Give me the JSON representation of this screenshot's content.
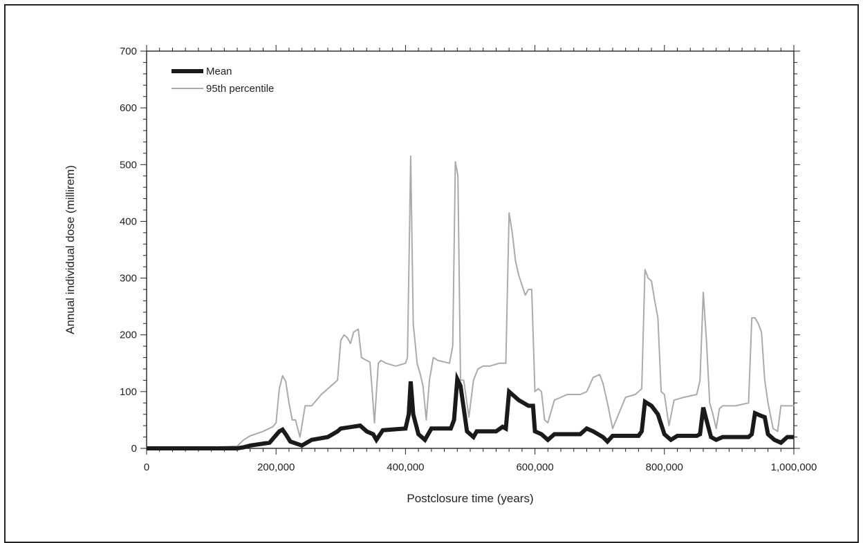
{
  "chart_data": {
    "type": "line",
    "xlabel": "Postclosure time (years)",
    "ylabel": "Annual individual dose (millirem)",
    "xlim": [
      0,
      1000000
    ],
    "ylim": [
      0,
      700
    ],
    "x_ticks": [
      0,
      200000,
      400000,
      600000,
      800000,
      1000000
    ],
    "x_tick_labels": [
      "0",
      "200,000",
      "400,000",
      "600,000",
      "800,000",
      "1,000,000"
    ],
    "y_ticks": [
      0,
      100,
      200,
      300,
      400,
      500,
      600,
      700
    ],
    "y_tick_labels": [
      "0",
      "100",
      "200",
      "300",
      "400",
      "500",
      "600",
      "700"
    ],
    "grid": false,
    "legend_position": "top-left",
    "series": [
      {
        "name": "Mean",
        "color": "#1a1a1a",
        "x": [
          0,
          100000,
          140000,
          150000,
          160000,
          190000,
          205000,
          210000,
          215000,
          222000,
          240000,
          255000,
          280000,
          295000,
          300000,
          330000,
          340000,
          350000,
          355000,
          365000,
          400000,
          405000,
          408000,
          412000,
          420000,
          430000,
          440000,
          470000,
          475000,
          480000,
          485000,
          495000,
          505000,
          510000,
          540000,
          550000,
          555000,
          560000,
          575000,
          590000,
          597000,
          600000,
          610000,
          620000,
          630000,
          660000,
          670000,
          680000,
          690000,
          705000,
          712000,
          720000,
          760000,
          765000,
          770000,
          780000,
          790000,
          800000,
          810000,
          820000,
          850000,
          855000,
          860000,
          865000,
          872000,
          880000,
          890000,
          930000,
          935000,
          940000,
          948000,
          955000,
          960000,
          970000,
          980000,
          990000,
          1000000
        ],
        "y": [
          0,
          0,
          0,
          2,
          5,
          10,
          30,
          33,
          25,
          12,
          5,
          15,
          20,
          30,
          35,
          40,
          30,
          25,
          15,
          32,
          35,
          60,
          118,
          60,
          25,
          15,
          35,
          35,
          50,
          122,
          110,
          30,
          20,
          30,
          30,
          38,
          35,
          100,
          85,
          75,
          75,
          30,
          25,
          15,
          25,
          25,
          25,
          35,
          30,
          20,
          12,
          22,
          22,
          30,
          82,
          75,
          60,
          25,
          15,
          22,
          22,
          25,
          72,
          50,
          20,
          15,
          20,
          20,
          25,
          62,
          58,
          55,
          25,
          15,
          10,
          20,
          20
        ]
      },
      {
        "name": "95th percentile",
        "color": "#aaaaaa",
        "x": [
          0,
          100000,
          140000,
          150000,
          160000,
          180000,
          195000,
          200000,
          205000,
          210000,
          215000,
          220000,
          225000,
          230000,
          237000,
          245000,
          255000,
          270000,
          290000,
          295000,
          300000,
          305000,
          310000,
          315000,
          320000,
          327000,
          332000,
          340000,
          345000,
          348000,
          352000,
          358000,
          362000,
          370000,
          385000,
          400000,
          403000,
          405000,
          408000,
          412000,
          418000,
          423000,
          427000,
          432000,
          437000,
          443000,
          450000,
          468000,
          473000,
          477000,
          481000,
          485000,
          490000,
          498000,
          505000,
          512000,
          520000,
          530000,
          545000,
          555000,
          560000,
          565000,
          570000,
          575000,
          585000,
          590000,
          595000,
          600000,
          605000,
          610000,
          615000,
          620000,
          630000,
          650000,
          660000,
          670000,
          680000,
          690000,
          700000,
          705000,
          712000,
          720000,
          740000,
          755000,
          760000,
          765000,
          770000,
          775000,
          780000,
          785000,
          790000,
          795000,
          800000,
          807000,
          815000,
          830000,
          850000,
          855000,
          860000,
          865000,
          870000,
          875000,
          880000,
          885000,
          890000,
          910000,
          930000,
          935000,
          940000,
          945000,
          950000,
          955000,
          960000,
          968000,
          975000,
          980000,
          990000,
          1000000
        ],
        "y": [
          2,
          2,
          4,
          15,
          22,
          30,
          38,
          45,
          105,
          128,
          118,
          80,
          50,
          50,
          20,
          75,
          75,
          95,
          115,
          120,
          190,
          200,
          195,
          185,
          205,
          210,
          160,
          155,
          152,
          110,
          45,
          150,
          155,
          150,
          145,
          150,
          160,
          300,
          515,
          220,
          150,
          130,
          110,
          50,
          120,
          160,
          155,
          150,
          180,
          505,
          480,
          120,
          120,
          55,
          120,
          140,
          145,
          145,
          150,
          150,
          415,
          380,
          330,
          305,
          270,
          280,
          280,
          100,
          105,
          100,
          50,
          45,
          85,
          95,
          95,
          95,
          100,
          125,
          130,
          115,
          80,
          35,
          90,
          95,
          100,
          105,
          315,
          300,
          295,
          260,
          230,
          100,
          95,
          40,
          85,
          90,
          95,
          120,
          275,
          190,
          80,
          60,
          35,
          70,
          75,
          75,
          80,
          230,
          230,
          220,
          205,
          120,
          80,
          35,
          30,
          75,
          75,
          75
        ]
      }
    ]
  }
}
